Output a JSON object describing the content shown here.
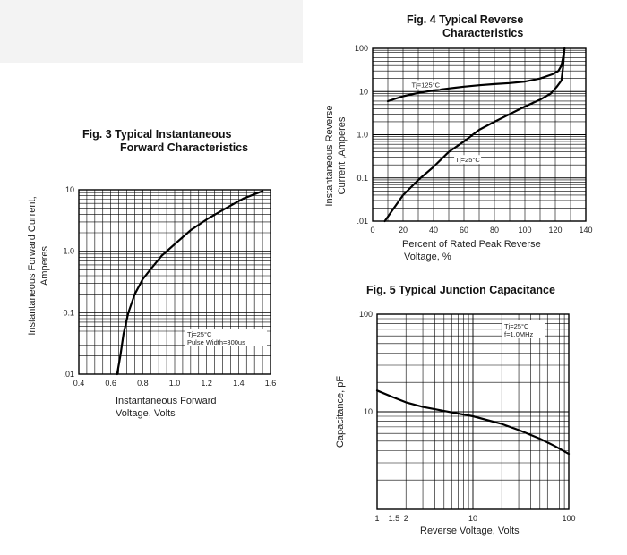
{
  "chart_data": [
    {
      "id": "fig3",
      "type": "line",
      "title": [
        "Fig. 3 Typical Instantaneous",
        "Forward Characteristics"
      ],
      "xlabel": [
        "Instantaneous Forward",
        "Voltage, Volts"
      ],
      "ylabel": [
        "Instantaneous Forward Current,",
        "Amperes"
      ],
      "xscale": "linear",
      "yscale": "log",
      "xlim": [
        0.4,
        1.6
      ],
      "ylim": [
        0.01,
        10
      ],
      "xticks": [
        0.4,
        0.6,
        0.8,
        1.0,
        1.2,
        1.4,
        1.6
      ],
      "xtick_labels": [
        "0.4",
        "0.6",
        "0.8",
        "1.0",
        "1.2",
        "1.4",
        "1.6"
      ],
      "yticks": [
        0.01,
        0.1,
        1.0,
        10
      ],
      "ytick_labels": [
        ".01",
        "0.1",
        "1.0",
        "10"
      ],
      "annotation": [
        "Tj=25°C",
        "Pulse Width=300us"
      ],
      "series": [
        {
          "name": "Tj=25°C",
          "x": [
            0.64,
            0.66,
            0.68,
            0.71,
            0.75,
            0.8,
            0.86,
            0.92,
            1.0,
            1.1,
            1.2,
            1.32,
            1.43,
            1.55
          ],
          "y": [
            0.01,
            0.02,
            0.045,
            0.1,
            0.2,
            0.35,
            0.55,
            0.85,
            1.3,
            2.2,
            3.3,
            5.0,
            7.2,
            9.5
          ]
        }
      ]
    },
    {
      "id": "fig4",
      "type": "line",
      "title": [
        "Fig. 4 Typical Reverse",
        "Characteristics"
      ],
      "xlabel": [
        "Percent of Rated Peak Reverse",
        "Voltage, %"
      ],
      "ylabel": [
        "Instantaneous Reverse",
        "Current ,Amperes"
      ],
      "xscale": "linear",
      "yscale": "log",
      "xlim": [
        0,
        140
      ],
      "ylim": [
        0.01,
        100
      ],
      "xticks": [
        0,
        20,
        40,
        60,
        80,
        100,
        120,
        140
      ],
      "xtick_labels": [
        "0",
        "20",
        "40",
        "60",
        "80",
        "100",
        "120",
        "140"
      ],
      "yticks": [
        0.01,
        0.1,
        1.0,
        10,
        100
      ],
      "ytick_labels": [
        ".01",
        "0.1",
        "1.0",
        "10",
        "100"
      ],
      "series": [
        {
          "name": "Tj=125°C",
          "x": [
            10,
            20,
            30,
            40,
            50,
            60,
            70,
            80,
            90,
            100,
            110,
            118,
            122,
            124,
            125,
            126
          ],
          "y": [
            6,
            7.8,
            9.3,
            10.6,
            11.8,
            13,
            14,
            14.9,
            15.7,
            17,
            20,
            25,
            30,
            40,
            60,
            100
          ]
        },
        {
          "name": "Tj=25°C",
          "x": [
            8,
            12,
            20,
            30,
            40,
            50,
            60,
            70,
            80,
            90,
            100,
            110,
            117,
            121,
            124,
            125,
            126
          ],
          "y": [
            0.01,
            0.016,
            0.04,
            0.09,
            0.18,
            0.4,
            0.7,
            1.3,
            2,
            3,
            4.5,
            6.5,
            9,
            13,
            18,
            35,
            100
          ]
        }
      ],
      "annotations": [
        "Tj=125°C",
        "Tj=25°C"
      ]
    },
    {
      "id": "fig5",
      "type": "line",
      "title": [
        "Fig. 5 Typical Junction Capacitance"
      ],
      "xlabel": [
        "Reverse Voltage, Volts"
      ],
      "ylabel": [
        "Capacitance, pF"
      ],
      "xscale": "log",
      "yscale": "log",
      "xlim": [
        1,
        100
      ],
      "ylim": [
        1,
        100
      ],
      "xticks": [
        1,
        1.5,
        2,
        10,
        100
      ],
      "xtick_labels": [
        "1",
        "1.5",
        "2",
        "10",
        "100"
      ],
      "yticks": [
        10,
        100
      ],
      "ytick_labels": [
        "10",
        "100"
      ],
      "annotation": [
        "Tj=25°C",
        "f=1.0MHz"
      ],
      "series": [
        {
          "name": "Tj=25°C, f=1.0MHz",
          "x": [
            1,
            1.5,
            2,
            3,
            5,
            10,
            20,
            30,
            50,
            70,
            100
          ],
          "y": [
            16.5,
            14,
            12.5,
            11.2,
            10.2,
            9.0,
            7.5,
            6.5,
            5.3,
            4.5,
            3.7
          ]
        }
      ]
    }
  ]
}
